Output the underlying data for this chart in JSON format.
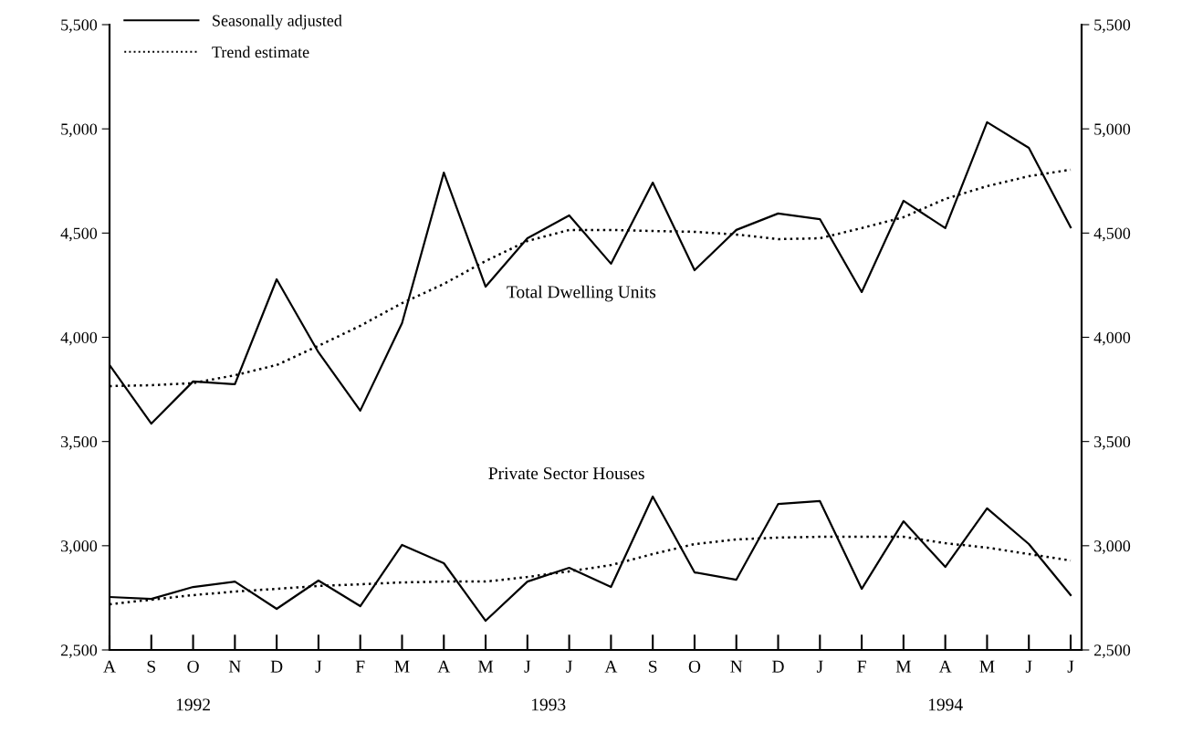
{
  "chart_data": {
    "type": "line",
    "categories": [
      "A",
      "S",
      "O",
      "N",
      "D",
      "J",
      "F",
      "M",
      "A",
      "M",
      "J",
      "J",
      "A",
      "S",
      "O",
      "N",
      "D",
      "J",
      "F",
      "M",
      "A",
      "M",
      "J",
      "J"
    ],
    "series": [
      {
        "name": "Seasonally adjusted",
        "color": "#000000",
        "line_style": "solid",
        "values": [
          3867,
          3586,
          3788,
          3775,
          4278,
          3928,
          3648,
          4068,
          4790,
          4243,
          4475,
          4585,
          4353,
          4742,
          4322,
          4515,
          4594,
          4567,
          4217,
          4655,
          4524,
          5032,
          4909,
          4528
        ]
      },
      {
        "name": "Trend estimate",
        "color": "#000000",
        "line_style": "dotted",
        "values": [
          3766,
          3770,
          3780,
          3818,
          3867,
          3959,
          4055,
          4164,
          4256,
          4366,
          4462,
          4515,
          4515,
          4510,
          4506,
          4493,
          4471,
          4475,
          4524,
          4576,
          4664,
          4725,
          4773,
          4804
        ]
      },
      {
        "color": "#000000",
        "line_style": "solid",
        "values": [
          2754,
          2745,
          2802,
          2828,
          2697,
          2833,
          2710,
          3004,
          2916,
          2640,
          2828,
          2894,
          2802,
          3236,
          2872,
          2837,
          3200,
          3214,
          2793,
          3117,
          2898,
          3179,
          3008,
          2763
        ]
      },
      {
        "color": "#000000",
        "line_style": "dotted",
        "values": [
          2719,
          2741,
          2763,
          2780,
          2793,
          2807,
          2815,
          2824,
          2828,
          2828,
          2850,
          2877,
          2907,
          2960,
          3008,
          3030,
          3039,
          3043,
          3043,
          3043,
          3012,
          2991,
          2960,
          2929
        ]
      }
    ],
    "ylim": [
      2500,
      5500
    ],
    "yticks": [
      {
        "value": 2500,
        "label": "2,500"
      },
      {
        "value": 3000,
        "label": "3,000"
      },
      {
        "value": 3500,
        "label": "3,500"
      },
      {
        "value": 4000,
        "label": "4,000"
      },
      {
        "value": 4500,
        "label": "4,500"
      },
      {
        "value": 5000,
        "label": "5,000"
      },
      {
        "value": 5500,
        "label": "5,500"
      }
    ],
    "y2lim": [
      2500,
      5500
    ],
    "y2ticks": [
      {
        "value": 2500,
        "label": "2,500"
      },
      {
        "value": 3000,
        "label": "3,000"
      },
      {
        "value": 3500,
        "label": "3,500"
      },
      {
        "value": 4000,
        "label": "4,000"
      },
      {
        "value": 4500,
        "label": "4,500"
      },
      {
        "value": 5000,
        "label": "5,000"
      },
      {
        "value": 5500,
        "label": "5,500"
      }
    ],
    "annotations": [
      "Total Dwelling Units",
      "Private Sector Houses",
      "1992",
      "1993",
      "1994"
    ],
    "legend": "top left",
    "grid": false,
    "marker": "none"
  }
}
